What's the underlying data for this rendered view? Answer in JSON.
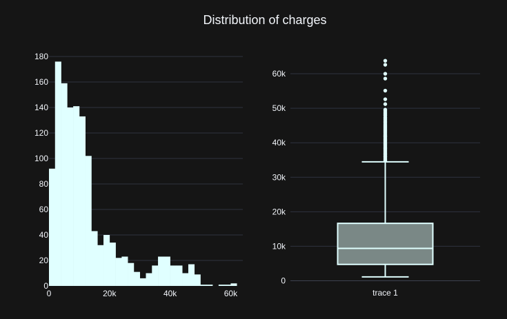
{
  "chart_data": {
    "title": "Distribution of charges",
    "colors": {
      "background": "#151515",
      "grid": "#2f3340",
      "text": "#f2f5fa",
      "bar_fill": "#e0ffff",
      "box_fill": "#7a8886",
      "box_line": "#e0ffff"
    },
    "charts": [
      {
        "type": "histogram",
        "bin_width": 2000,
        "bin_start": 0,
        "bin_counts": [
          92,
          176,
          159,
          140,
          141,
          133,
          102,
          43,
          32,
          40,
          34,
          22,
          23,
          18,
          11,
          6,
          10,
          16,
          23,
          23,
          16,
          16,
          10,
          17,
          9,
          1,
          1,
          0,
          1,
          1,
          2
        ],
        "xlim": [
          0,
          64000
        ],
        "ylim": [
          0,
          180
        ],
        "x_ticks": [
          0,
          20000,
          40000,
          60000
        ],
        "x_tick_labels": [
          "0",
          "20k",
          "40k",
          "60k"
        ],
        "y_ticks": [
          0,
          20,
          40,
          60,
          80,
          100,
          120,
          140,
          160,
          180
        ],
        "y_tick_labels": [
          "0",
          "20",
          "40",
          "60",
          "80",
          "100",
          "120",
          "140",
          "160",
          "180"
        ],
        "grid": true
      },
      {
        "type": "box",
        "category": "trace 1",
        "stats": {
          "min": 1122,
          "q1": 4740,
          "median": 9382,
          "q3": 16640,
          "upper_fence": 34472
        },
        "outliers": [
          34800,
          35100,
          35500,
          35900,
          36200,
          36600,
          36900,
          37300,
          37700,
          38100,
          38400,
          38700,
          39100,
          39500,
          39800,
          40200,
          40600,
          40900,
          41300,
          41700,
          42000,
          42300,
          42800,
          43200,
          43600,
          44000,
          44400,
          44800,
          45200,
          45700,
          46100,
          46600,
          47000,
          47400,
          47900,
          48300,
          48700,
          49200,
          49600,
          51200,
          52600,
          55100,
          58600,
          60000,
          62600,
          63770
        ],
        "ylim": [
          -1500,
          65000
        ],
        "y_ticks": [
          0,
          10000,
          20000,
          30000,
          40000,
          50000,
          60000
        ],
        "y_tick_labels": [
          "0",
          "10k",
          "20k",
          "30k",
          "40k",
          "50k",
          "60k"
        ],
        "grid": true
      }
    ]
  }
}
